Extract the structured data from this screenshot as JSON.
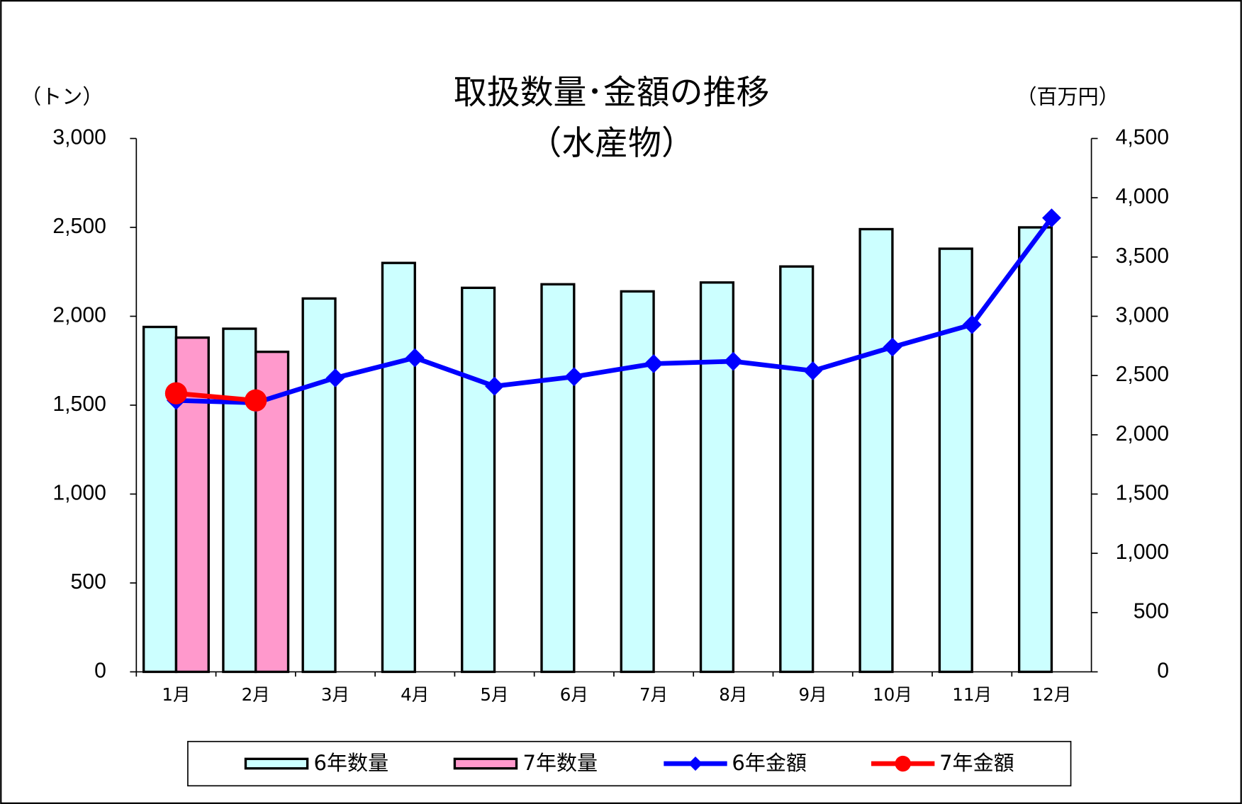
{
  "chart_data": {
    "type": "bar-line",
    "title": "取扱数量･金額の推移",
    "subtitle": "（水産物）",
    "y_label": "（トン）",
    "y2_label": "（百万円）",
    "categories": [
      "1月",
      "2月",
      "3月",
      "4月",
      "5月",
      "6月",
      "7月",
      "8月",
      "9月",
      "10月",
      "11月",
      "12月"
    ],
    "series": [
      {
        "name": "6年数量",
        "type": "bar",
        "color": "#ccffff",
        "values": [
          1940,
          1930,
          2100,
          2300,
          2160,
          2180,
          2140,
          2190,
          2280,
          2490,
          2380,
          2500
        ]
      },
      {
        "name": "7年数量",
        "type": "bar",
        "color": "#ff99cc",
        "values": [
          1880,
          1800,
          null,
          null,
          null,
          null,
          null,
          null,
          null,
          null,
          null,
          null
        ]
      },
      {
        "name": "6年金額",
        "type": "line",
        "marker": "diamond",
        "axis": "y2",
        "color": "#0000ff",
        "values": [
          2290,
          2270,
          2480,
          2650,
          2410,
          2490,
          2600,
          2620,
          2540,
          2740,
          2930,
          3830
        ]
      },
      {
        "name": "7年金額",
        "type": "line",
        "marker": "circle",
        "axis": "y2",
        "color": "#ff0000",
        "values": [
          2350,
          2290,
          null,
          null,
          null,
          null,
          null,
          null,
          null,
          null,
          null,
          null
        ]
      }
    ],
    "ylim": [
      0,
      3000
    ],
    "yticks": [
      0,
      500,
      {
        "value": 1000,
        "label": "1,000"
      },
      {
        "value": 1500,
        "label": "1,500"
      },
      {
        "value": 2000,
        "label": "2,000"
      },
      {
        "value": 2500,
        "label": "2,500"
      },
      {
        "value": 3000,
        "label": "3,000"
      }
    ],
    "y2lim": [
      0,
      4500
    ],
    "y2ticks": [
      0,
      500,
      {
        "value": 1000,
        "label": "1,000"
      },
      {
        "value": 1500,
        "label": "1,500"
      },
      {
        "value": 2000,
        "label": "2,000"
      },
      {
        "value": 2500,
        "label": "2,500"
      },
      {
        "value": 3000,
        "label": "3,000"
      },
      {
        "value": 3500,
        "label": "3,500"
      },
      {
        "value": 4000,
        "label": "4,000"
      },
      {
        "value": 4500,
        "label": "4,500"
      }
    ],
    "grid": false,
    "legend": "bottom"
  }
}
